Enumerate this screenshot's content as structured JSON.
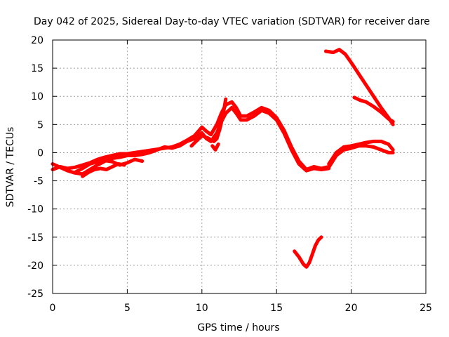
{
  "chart_data": {
    "type": "line",
    "title": "Day 042 of 2025, Sidereal Day-to-day VTEC variation (SDTVAR) for receiver dare",
    "xlabel": "GPS time / hours",
    "ylabel": "SDTVAR / TECUs",
    "xlim": [
      0,
      25
    ],
    "ylim": [
      -25,
      20
    ],
    "xticks": [
      0,
      5,
      10,
      15,
      20,
      25
    ],
    "yticks": [
      20,
      15,
      10,
      5,
      0,
      -5,
      -10,
      -15,
      -20,
      -25
    ],
    "xtick_labels": [
      "0",
      "5",
      "10",
      "15",
      "20",
      "25"
    ],
    "ytick_labels": [
      "20",
      "15",
      "10",
      "5",
      "0",
      "-5",
      "-10",
      "-15",
      "-20",
      "-25"
    ],
    "grid": true,
    "legend": "none",
    "color": "#ff0000",
    "series": [
      {
        "name": "track-1",
        "x": [
          0,
          0.5,
          1,
          1.5,
          2,
          2.5,
          3,
          3.5,
          4,
          4.5,
          5,
          5.5,
          6,
          6.5,
          7,
          7.5,
          8,
          8.5,
          9,
          9.5,
          10,
          10.3,
          10.6,
          11,
          11.3,
          11.6,
          12,
          12.3,
          12.6,
          13,
          13.5,
          14,
          14.5,
          15,
          15.5,
          16,
          16.5,
          17,
          17.5,
          18,
          18.5
        ],
        "y": [
          -3,
          -2.5,
          -2.8,
          -2.6,
          -2.2,
          -1.8,
          -1.2,
          -0.8,
          -0.5,
          -0.2,
          -0.2,
          0,
          0.2,
          0.4,
          0.6,
          0.8,
          1,
          1.5,
          2.2,
          3,
          4.5,
          3.8,
          3.2,
          5,
          7,
          8.5,
          9,
          8,
          6.5,
          6.5,
          7.2,
          8,
          7.5,
          6.2,
          4,
          1,
          -1.5,
          -3,
          -2.5,
          -2.8,
          -2.5
        ]
      },
      {
        "name": "track-2",
        "x": [
          0,
          0.5,
          1,
          1.5,
          2,
          2.5,
          3,
          3.5,
          4,
          4.5,
          5,
          5.5,
          6,
          6.5,
          7,
          7.5,
          8,
          8.5,
          9,
          9.5,
          10,
          10.3,
          10.6,
          11,
          11.3,
          11.6,
          12,
          12.3,
          12.6,
          13,
          13.5,
          14,
          14.5,
          15,
          15.5,
          16,
          16.5,
          17,
          17.5,
          18,
          18.5
        ],
        "y": [
          -2,
          -2.6,
          -3.2,
          -3.6,
          -3.8,
          -3,
          -2.2,
          -1.5,
          -1,
          -0.8,
          -0.5,
          -0.5,
          -0.3,
          0,
          0.5,
          1,
          0.8,
          1.2,
          2,
          2.5,
          3.5,
          2.5,
          2,
          3.5,
          5.5,
          7,
          8,
          7,
          5.8,
          5.8,
          6.5,
          7.5,
          7,
          5.8,
          3.5,
          0.5,
          -2,
          -3.2,
          -2.8,
          -3,
          -2.8
        ]
      },
      {
        "name": "track-3",
        "x": [
          1.5,
          2,
          2.5,
          3,
          3.5,
          4,
          4.5,
          5,
          5.5,
          6
        ],
        "y": [
          -3.5,
          -2.8,
          -2,
          -1.6,
          -1.4,
          -1.6,
          -2.2,
          -1.8,
          -1.2,
          -1.5
        ]
      },
      {
        "name": "track-4",
        "x": [
          2,
          2.4,
          2.8,
          3.2,
          3.6,
          4,
          4.4,
          4.8
        ],
        "y": [
          -4.2,
          -3.5,
          -3,
          -2.8,
          -3,
          -2.5,
          -2,
          -2.2
        ]
      },
      {
        "name": "track-5",
        "x": [
          9.3,
          9.6,
          10,
          10.4,
          10.8,
          11,
          11.2,
          11.4,
          11.6
        ],
        "y": [
          1.2,
          2,
          3,
          2.6,
          2,
          2.5,
          4.2,
          6.5,
          9.5
        ]
      },
      {
        "name": "track-6",
        "x": [
          10.7,
          10.9,
          11.1
        ],
        "y": [
          1.2,
          0.5,
          1.5
        ]
      },
      {
        "name": "track-7",
        "x": [
          18.5,
          19,
          19.5,
          20,
          20.5,
          21,
          21.5,
          22,
          22.5,
          22.8
        ],
        "y": [
          -2,
          0,
          1,
          1.2,
          1.5,
          1.8,
          2,
          2,
          1.5,
          0.5
        ]
      },
      {
        "name": "track-8",
        "x": [
          18.5,
          19,
          19.5,
          20,
          20.5,
          21,
          21.5,
          22,
          22.5,
          22.8
        ],
        "y": [
          -2.6,
          -0.5,
          0.5,
          0.8,
          1.2,
          1.2,
          1,
          0.5,
          0,
          0
        ]
      },
      {
        "name": "track-9",
        "x": [
          18.3,
          18.8,
          19.2,
          19.6,
          20,
          20.5,
          21,
          21.5,
          22,
          22.5,
          22.8
        ],
        "y": [
          18,
          17.8,
          18.3,
          17.5,
          16,
          14,
          12,
          10,
          8,
          6.2,
          5
        ]
      },
      {
        "name": "track-10",
        "x": [
          20.2,
          20.6,
          21,
          21.5,
          22,
          22.5,
          22.8
        ],
        "y": [
          9.8,
          9.3,
          9,
          8.2,
          7.2,
          6,
          5.5
        ]
      },
      {
        "name": "track-11",
        "x": [
          16.2,
          16.5,
          16.8,
          17,
          17.2,
          17.4,
          17.6,
          17.8,
          18
        ],
        "y": [
          -17.5,
          -18.5,
          -19.8,
          -20.3,
          -19.5,
          -18,
          -16.5,
          -15.5,
          -15
        ]
      }
    ]
  }
}
